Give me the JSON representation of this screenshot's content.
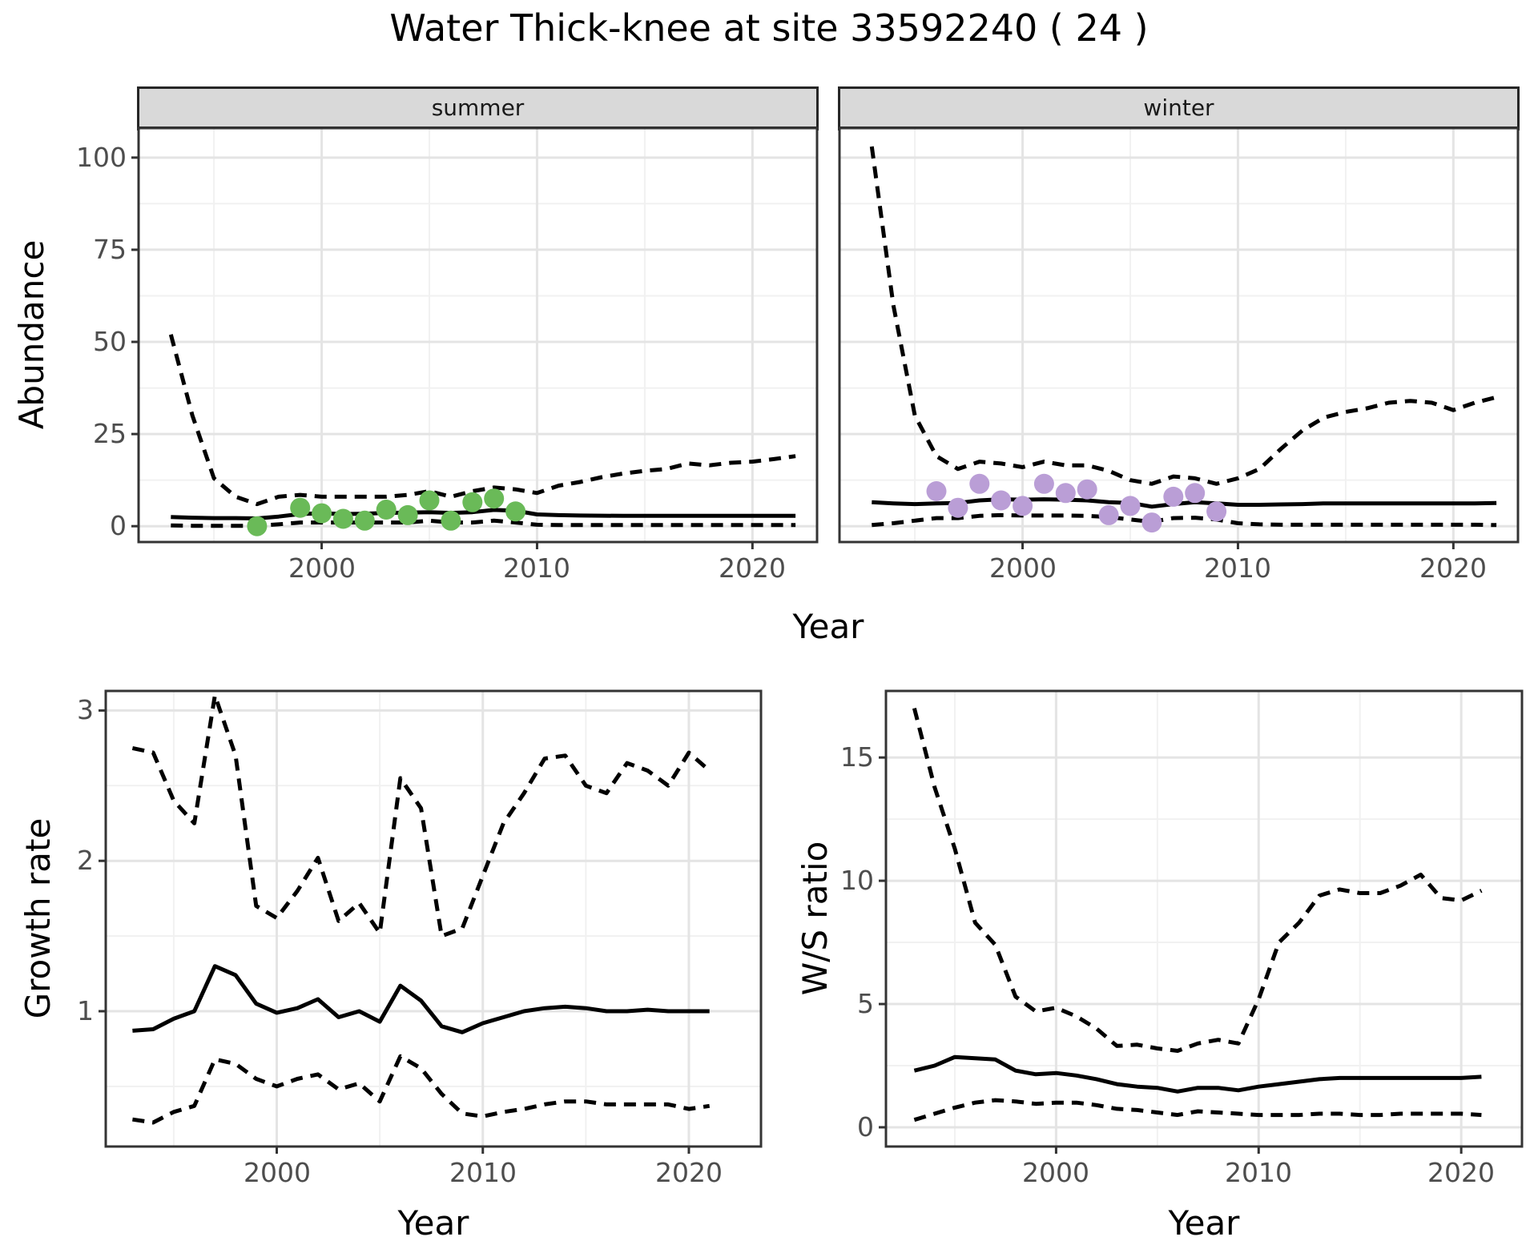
{
  "title": "Water Thick-knee at site 33592240 ( 24 )",
  "facets": {
    "summer": "summer",
    "winter": "winter"
  },
  "axis_titles": {
    "abundance": "Abundance",
    "year": "Year",
    "growth_rate": "Growth rate",
    "ws_ratio": "W/S ratio"
  },
  "styles": {
    "line_color": "#000000",
    "summer_point_color": "#6ABA58",
    "winter_point_color": "#BA9ED6",
    "strip_bg": "#d9d9d9",
    "grid_major": "#e4e4e4",
    "grid_minor": "#f1f1f1",
    "panel_border": "#343434",
    "tick_text": "#4d4d4d"
  },
  "chart_data": [
    {
      "id": "abundance-summer",
      "type": "line",
      "facet_label": "summer",
      "xlabel": "Year",
      "ylabel": "Abundance",
      "xlim": [
        1991.5,
        2023.0
      ],
      "ylim": [
        -4.3,
        108
      ],
      "xticks": [
        2000,
        2010,
        2020
      ],
      "yticks": [
        0,
        25,
        50,
        75,
        100
      ],
      "x_minor": [
        1995,
        2005,
        2015
      ],
      "y_minor": [
        12.5,
        37.5,
        62.5,
        87.5
      ],
      "x": [
        1993,
        1994,
        1995,
        1996,
        1997,
        1998,
        1999,
        2000,
        2001,
        2002,
        2003,
        2004,
        2005,
        2006,
        2007,
        2008,
        2009,
        2010,
        2011,
        2012,
        2013,
        2014,
        2015,
        2016,
        2017,
        2018,
        2019,
        2020,
        2021,
        2022
      ],
      "series": [
        {
          "name": "upper_95ci",
          "style": "dashed",
          "values": [
            52,
            30,
            13,
            8,
            6,
            8,
            8.5,
            8,
            8,
            8,
            8,
            8.5,
            9.5,
            8,
            9.5,
            10.5,
            10,
            9,
            11,
            12,
            13.3,
            14.3,
            15,
            15.5,
            17,
            16.5,
            17.2,
            17.5,
            18.2,
            19
          ]
        },
        {
          "name": "median",
          "style": "solid",
          "values": [
            2.5,
            2.3,
            2.2,
            2.2,
            2.1,
            2.6,
            3.3,
            3.5,
            3.3,
            3.4,
            3.6,
            3.7,
            3.8,
            3.6,
            3.8,
            4.4,
            4.2,
            3.2,
            3.0,
            2.9,
            2.85,
            2.8,
            2.8,
            2.8,
            2.8,
            2.8,
            2.8,
            2.8,
            2.8,
            2.8
          ]
        },
        {
          "name": "lower_95ci",
          "style": "dashed",
          "values": [
            0.2,
            0.1,
            0.1,
            0.1,
            0.1,
            0.5,
            1.0,
            1.0,
            1.0,
            1.0,
            1.0,
            1.0,
            1.5,
            1.0,
            1.0,
            1.5,
            1.0,
            0.4,
            0.3,
            0.3,
            0.3,
            0.3,
            0.3,
            0.3,
            0.3,
            0.3,
            0.3,
            0.3,
            0.3,
            0.3
          ]
        }
      ],
      "points": {
        "name": "observed-counts-summer",
        "color": "#6ABA58",
        "x": [
          1997,
          1999,
          2000,
          2001,
          2002,
          2003,
          2004,
          2005,
          2006,
          2007,
          2008,
          2009
        ],
        "y": [
          0,
          5,
          3.5,
          2,
          1.5,
          4.5,
          3,
          7,
          1.5,
          6.5,
          7.5,
          4
        ]
      }
    },
    {
      "id": "abundance-winter",
      "type": "line",
      "facet_label": "winter",
      "xlabel": "Year",
      "ylabel": "Abundance",
      "xlim": [
        1991.5,
        2023.0
      ],
      "ylim": [
        -4.3,
        108
      ],
      "xticks": [
        2000,
        2010,
        2020
      ],
      "yticks": [
        0,
        25,
        50,
        75,
        100
      ],
      "x_minor": [
        1995,
        2005,
        2015
      ],
      "y_minor": [
        12.5,
        37.5,
        62.5,
        87.5
      ],
      "x": [
        1993,
        1994,
        1995,
        1996,
        1997,
        1998,
        1999,
        2000,
        2001,
        2002,
        2003,
        2004,
        2005,
        2006,
        2007,
        2008,
        2009,
        2010,
        2011,
        2012,
        2013,
        2014,
        2015,
        2016,
        2017,
        2018,
        2019,
        2020,
        2021,
        2022
      ],
      "series": [
        {
          "name": "upper_95ci",
          "style": "dashed",
          "values": [
            103,
            60,
            30,
            19,
            15.5,
            17.5,
            17,
            16,
            17.5,
            16.5,
            16.5,
            15,
            12.5,
            11.5,
            13.5,
            13,
            11.5,
            13,
            15.5,
            21,
            26,
            29.5,
            31,
            32,
            33.5,
            34,
            33.5,
            31.5,
            33.5,
            35
          ]
        },
        {
          "name": "median",
          "style": "solid",
          "values": [
            6.5,
            6.2,
            6.0,
            6.2,
            6.3,
            7.0,
            7.3,
            7.2,
            7.3,
            7.2,
            7.0,
            6.5,
            6.3,
            5.3,
            6.0,
            6.5,
            6.2,
            5.8,
            5.8,
            5.9,
            6.0,
            6.2,
            6.2,
            6.2,
            6.2,
            6.2,
            6.2,
            6.2,
            6.2,
            6.3
          ]
        },
        {
          "name": "lower_95ci",
          "style": "dashed",
          "values": [
            0.3,
            0.8,
            1.5,
            2.2,
            2.2,
            2.8,
            3.0,
            2.9,
            2.9,
            2.9,
            2.8,
            2.5,
            1.8,
            1.2,
            2.2,
            2.3,
            1.8,
            0.8,
            0.5,
            0.4,
            0.4,
            0.4,
            0.4,
            0.4,
            0.4,
            0.4,
            0.4,
            0.4,
            0.4,
            0.3
          ]
        }
      ],
      "points": {
        "name": "observed-counts-winter",
        "color": "#BA9ED6",
        "x": [
          1996,
          1997,
          1998,
          1999,
          2000,
          2001,
          2002,
          2003,
          2004,
          2005,
          2006,
          2007,
          2008,
          2009
        ],
        "y": [
          9.5,
          5,
          11.5,
          7,
          5.5,
          11.5,
          9,
          10,
          3,
          5.5,
          1,
          8,
          9,
          4
        ]
      }
    },
    {
      "id": "growth-rate",
      "type": "line",
      "facet_label": "",
      "xlabel": "Year",
      "ylabel": "Growth rate",
      "xlim": [
        1991.7,
        2023.5
      ],
      "ylim": [
        0.1,
        3.13
      ],
      "xticks": [
        2000,
        2010,
        2020
      ],
      "yticks": [
        1,
        2,
        3
      ],
      "x_minor": [
        1995,
        2005,
        2015
      ],
      "y_minor": [
        0.5,
        1.5,
        2.5
      ],
      "x": [
        1993,
        1994,
        1995,
        1996,
        1997,
        1998,
        1999,
        2000,
        2001,
        2002,
        2003,
        2004,
        2005,
        2006,
        2007,
        2008,
        2009,
        2010,
        2011,
        2012,
        2013,
        2014,
        2015,
        2016,
        2017,
        2018,
        2019,
        2020,
        2021
      ],
      "series": [
        {
          "name": "upper_95ci",
          "style": "dashed",
          "values": [
            2.75,
            2.72,
            2.4,
            2.25,
            3.1,
            2.7,
            1.7,
            1.62,
            1.8,
            2.02,
            1.6,
            1.72,
            1.52,
            2.55,
            2.35,
            1.5,
            1.55,
            1.9,
            2.25,
            2.45,
            2.68,
            2.7,
            2.5,
            2.45,
            2.65,
            2.6,
            2.5,
            2.72,
            2.6
          ]
        },
        {
          "name": "median",
          "style": "solid",
          "values": [
            0.87,
            0.88,
            0.95,
            1.0,
            1.3,
            1.24,
            1.05,
            0.99,
            1.02,
            1.08,
            0.96,
            1.0,
            0.93,
            1.17,
            1.07,
            0.9,
            0.86,
            0.92,
            0.96,
            1.0,
            1.02,
            1.03,
            1.02,
            1.0,
            1.0,
            1.01,
            1.0,
            1.0,
            1.0
          ]
        },
        {
          "name": "lower_95ci",
          "style": "dashed",
          "values": [
            0.28,
            0.26,
            0.33,
            0.37,
            0.68,
            0.65,
            0.55,
            0.5,
            0.55,
            0.58,
            0.48,
            0.52,
            0.4,
            0.7,
            0.62,
            0.45,
            0.32,
            0.3,
            0.33,
            0.35,
            0.38,
            0.4,
            0.4,
            0.38,
            0.38,
            0.38,
            0.38,
            0.35,
            0.37
          ]
        }
      ],
      "points": null
    },
    {
      "id": "ws-ratio",
      "type": "line",
      "facet_label": "",
      "xlabel": "Year",
      "ylabel": "W/S ratio",
      "xlim": [
        1991.6,
        2023.0
      ],
      "ylim": [
        -0.78,
        17.7
      ],
      "xticks": [
        2000,
        2010,
        2020
      ],
      "yticks": [
        0,
        5,
        10,
        15
      ],
      "x_minor": [
        1995,
        2005,
        2015
      ],
      "y_minor": [
        2.5,
        7.5,
        12.5
      ],
      "x": [
        1993,
        1994,
        1995,
        1996,
        1997,
        1998,
        1999,
        2000,
        2001,
        2002,
        2003,
        2004,
        2005,
        2006,
        2007,
        2008,
        2009,
        2010,
        2011,
        2012,
        2013,
        2014,
        2015,
        2016,
        2017,
        2018,
        2019,
        2020,
        2021
      ],
      "series": [
        {
          "name": "upper_95ci",
          "style": "dashed",
          "values": [
            17,
            13.8,
            11.3,
            8.3,
            7.4,
            5.3,
            4.7,
            4.85,
            4.5,
            4.0,
            3.3,
            3.35,
            3.2,
            3.1,
            3.4,
            3.55,
            3.4,
            5.2,
            7.5,
            8.3,
            9.4,
            9.65,
            9.5,
            9.5,
            9.8,
            10.25,
            9.3,
            9.2,
            9.6
          ]
        },
        {
          "name": "median",
          "style": "solid",
          "values": [
            2.3,
            2.5,
            2.85,
            2.8,
            2.75,
            2.3,
            2.15,
            2.2,
            2.1,
            1.95,
            1.75,
            1.65,
            1.6,
            1.45,
            1.6,
            1.6,
            1.5,
            1.65,
            1.75,
            1.85,
            1.95,
            2.0,
            2.0,
            2.0,
            2.0,
            2.0,
            2.0,
            2.0,
            2.05
          ]
        },
        {
          "name": "lower_95ci",
          "style": "dashed",
          "values": [
            0.3,
            0.55,
            0.8,
            1.0,
            1.1,
            1.05,
            0.95,
            1.0,
            1.0,
            0.9,
            0.75,
            0.7,
            0.6,
            0.5,
            0.65,
            0.6,
            0.55,
            0.5,
            0.5,
            0.5,
            0.55,
            0.55,
            0.5,
            0.5,
            0.55,
            0.55,
            0.55,
            0.55,
            0.5
          ]
        }
      ],
      "points": null
    }
  ]
}
